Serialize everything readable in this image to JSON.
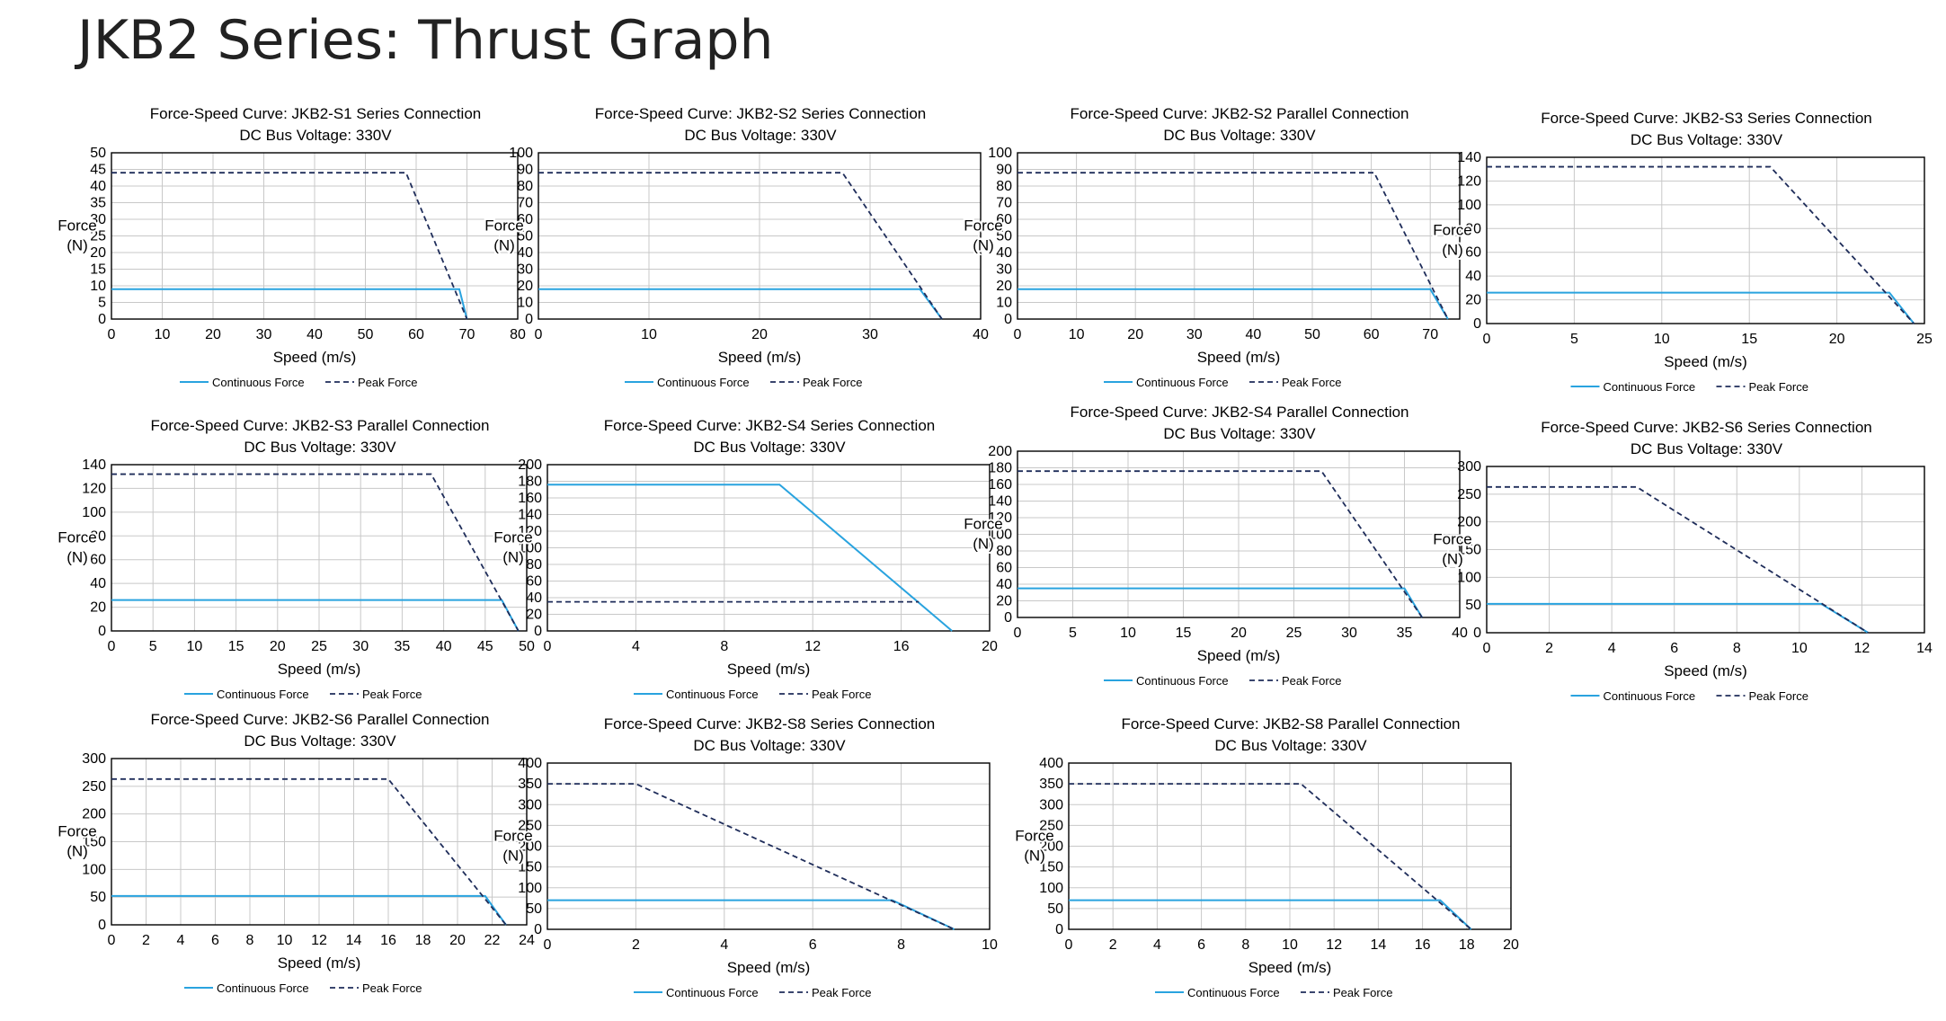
{
  "page": {
    "title": "JKB2 Series: Thrust Graph"
  },
  "colors": {
    "continuous": "#29a3df",
    "peak": "#1f2d5a",
    "grid": "#c8c8c8",
    "axis": "#000000"
  },
  "chart_data": [
    {
      "type": "line",
      "title": "Force-Speed Curve: JKB2-S1 Series Connection",
      "subtitle": "DC Bus Voltage: 330V",
      "xlabel": "Speed (m/s)",
      "ylabel": "Force\n(N)",
      "xlim": [
        0,
        80
      ],
      "ylim": [
        0,
        50
      ],
      "xticks": [
        0,
        10,
        20,
        30,
        40,
        50,
        60,
        70,
        80
      ],
      "yticks": [
        0,
        5,
        10,
        15,
        20,
        25,
        30,
        35,
        40,
        45,
        50
      ],
      "series": [
        {
          "name": "Continuous Force",
          "x": [
            0,
            68.5,
            70
          ],
          "y": [
            9,
            9,
            0
          ]
        },
        {
          "name": "Peak Force",
          "x": [
            0,
            58,
            70
          ],
          "y": [
            44,
            44,
            0
          ]
        }
      ]
    },
    {
      "type": "line",
      "title": "Force-Speed Curve: JKB2-S2 Series Connection",
      "subtitle": "DC Bus Voltage: 330V",
      "xlabel": "Speed (m/s)",
      "ylabel": "Force\n(N)",
      "xlim": [
        0,
        40
      ],
      "ylim": [
        0,
        100
      ],
      "xticks": [
        0,
        10,
        20,
        30,
        40
      ],
      "yticks": [
        0,
        10,
        20,
        30,
        40,
        50,
        60,
        70,
        80,
        90,
        100
      ],
      "series": [
        {
          "name": "Continuous Force",
          "x": [
            0,
            34.5,
            36.5
          ],
          "y": [
            18,
            18,
            0
          ]
        },
        {
          "name": "Peak Force",
          "x": [
            0,
            27.5,
            36.5
          ],
          "y": [
            88,
            88,
            0
          ]
        }
      ]
    },
    {
      "type": "line",
      "title": "Force-Speed Curve: JKB2-S2 Parallel Connection",
      "subtitle": "DC Bus Voltage: 330V",
      "xlabel": "Speed (m/s)",
      "ylabel": "Force\n(N)",
      "xlim": [
        0,
        75
      ],
      "ylim": [
        0,
        100
      ],
      "xticks": [
        0,
        10,
        20,
        30,
        40,
        50,
        60,
        70
      ],
      "yticks": [
        0,
        10,
        20,
        30,
        40,
        50,
        60,
        70,
        80,
        90,
        100
      ],
      "series": [
        {
          "name": "Continuous Force",
          "x": [
            0,
            70,
            73
          ],
          "y": [
            18,
            18,
            0
          ]
        },
        {
          "name": "Peak Force",
          "x": [
            0,
            60.5,
            73
          ],
          "y": [
            88,
            88,
            0
          ]
        }
      ]
    },
    {
      "type": "line",
      "title": "Force-Speed Curve: JKB2-S3 Series Connection",
      "subtitle": "DC Bus Voltage: 330V",
      "xlabel": "Speed (m/s)",
      "ylabel": "Force\n(N)",
      "xlim": [
        0,
        25
      ],
      "ylim": [
        0,
        140
      ],
      "xticks": [
        0,
        5,
        10,
        15,
        20,
        25
      ],
      "yticks": [
        0,
        20,
        40,
        60,
        80,
        100,
        120,
        140
      ],
      "series": [
        {
          "name": "Continuous Force",
          "x": [
            0,
            23,
            24.4
          ],
          "y": [
            26,
            26,
            0
          ]
        },
        {
          "name": "Peak Force",
          "x": [
            0,
            16.2,
            24.4
          ],
          "y": [
            132,
            132,
            0
          ]
        }
      ]
    },
    {
      "type": "line",
      "title": "Force-Speed Curve: JKB2-S3 Parallel Connection",
      "subtitle": "DC Bus Voltage: 330V",
      "xlabel": "Speed (m/s)",
      "ylabel": "Force\n(N)",
      "xlim": [
        0,
        50
      ],
      "ylim": [
        0,
        140
      ],
      "xticks": [
        0,
        5,
        10,
        15,
        20,
        25,
        30,
        35,
        40,
        45,
        50
      ],
      "yticks": [
        0,
        20,
        40,
        60,
        80,
        100,
        120,
        140
      ],
      "series": [
        {
          "name": "Continuous Force",
          "x": [
            0,
            47,
            49
          ],
          "y": [
            26,
            26,
            0
          ]
        },
        {
          "name": "Peak Force",
          "x": [
            0,
            38.5,
            49
          ],
          "y": [
            132,
            132,
            0
          ]
        }
      ]
    },
    {
      "type": "line",
      "title": "Force-Speed Curve: JKB2-S4 Series Connection",
      "subtitle": "DC Bus Voltage: 330V",
      "xlabel": "Speed (m/s)",
      "ylabel": "Force\n(N)",
      "xlim": [
        0,
        20
      ],
      "ylim": [
        0,
        200
      ],
      "xticks": [
        0,
        4,
        8,
        12,
        16,
        20
      ],
      "yticks": [
        0,
        20,
        40,
        60,
        80,
        100,
        120,
        140,
        160,
        180,
        200
      ],
      "series": [
        {
          "name": "Continuous Force",
          "x": [
            0,
            10.5,
            18.3
          ],
          "y": [
            176,
            176,
            0
          ]
        },
        {
          "name": "Peak Force",
          "x": [
            0,
            16.8
          ],
          "y": [
            35,
            35
          ]
        }
      ]
    },
    {
      "type": "line",
      "title": "Force-Speed Curve: JKB2-S4 Parallel Connection",
      "subtitle": "DC Bus Voltage: 330V",
      "xlabel": "Speed (m/s)",
      "ylabel": "Force\n(N)",
      "xlim": [
        0,
        40
      ],
      "ylim": [
        0,
        200
      ],
      "xticks": [
        0,
        5,
        10,
        15,
        20,
        25,
        30,
        35,
        40
      ],
      "yticks": [
        0,
        20,
        40,
        60,
        80,
        100,
        120,
        140,
        160,
        180,
        200
      ],
      "series": [
        {
          "name": "Continuous Force",
          "x": [
            0,
            35,
            36.6
          ],
          "y": [
            35,
            35,
            0
          ]
        },
        {
          "name": "Peak Force",
          "x": [
            0,
            27.5,
            36.6
          ],
          "y": [
            176,
            176,
            0
          ]
        }
      ]
    },
    {
      "type": "line",
      "title": "Force-Speed Curve: JKB2-S6 Series Connection",
      "subtitle": "DC Bus Voltage: 330V",
      "xlabel": "Speed (m/s)",
      "ylabel": "Force\n(N)",
      "xlim": [
        0,
        14
      ],
      "ylim": [
        0,
        300
      ],
      "xticks": [
        0,
        2,
        4,
        6,
        8,
        10,
        12,
        14
      ],
      "yticks": [
        0,
        50,
        100,
        150,
        200,
        250,
        300
      ],
      "series": [
        {
          "name": "Continuous Force",
          "x": [
            0,
            10.7,
            12.2
          ],
          "y": [
            52,
            52,
            0
          ]
        },
        {
          "name": "Peak Force",
          "x": [
            0,
            4.8,
            12.2
          ],
          "y": [
            263,
            263,
            0
          ]
        }
      ]
    },
    {
      "type": "line",
      "title": "Force-Speed Curve: JKB2-S6 Parallel Connection",
      "subtitle": "DC Bus Voltage: 330V",
      "xlabel": "Speed (m/s)",
      "ylabel": "Force\n(N)",
      "xlim": [
        0,
        24
      ],
      "ylim": [
        0,
        300
      ],
      "xticks": [
        0,
        2,
        4,
        6,
        8,
        10,
        12,
        14,
        16,
        18,
        20,
        22,
        24
      ],
      "yticks": [
        0,
        50,
        100,
        150,
        200,
        250,
        300
      ],
      "series": [
        {
          "name": "Continuous Force",
          "x": [
            0,
            21.6,
            22.8
          ],
          "y": [
            52,
            52,
            0
          ]
        },
        {
          "name": "Peak Force",
          "x": [
            0,
            16,
            22.8
          ],
          "y": [
            263,
            263,
            0
          ]
        }
      ]
    },
    {
      "type": "line",
      "title": "Force-Speed Curve: JKB2-S8 Series Connection",
      "subtitle": "DC Bus Voltage: 330V",
      "xlabel": "Speed (m/s)",
      "ylabel": "Force\n(N)",
      "xlim": [
        0,
        10
      ],
      "ylim": [
        0,
        400
      ],
      "xticks": [
        0,
        2,
        4,
        6,
        8,
        10
      ],
      "yticks": [
        0,
        50,
        100,
        150,
        200,
        250,
        300,
        350,
        400
      ],
      "series": [
        {
          "name": "Continuous Force",
          "x": [
            0,
            7.8,
            9.2
          ],
          "y": [
            70,
            70,
            0
          ]
        },
        {
          "name": "Peak Force",
          "x": [
            0,
            2,
            9.2
          ],
          "y": [
            350,
            350,
            0
          ]
        }
      ]
    },
    {
      "type": "line",
      "title": "Force-Speed Curve: JKB2-S8 Parallel Connection",
      "subtitle": "DC Bus Voltage: 330V",
      "xlabel": "Speed (m/s)",
      "ylabel": "Force\n(N)",
      "xlim": [
        0,
        20
      ],
      "ylim": [
        0,
        400
      ],
      "xticks": [
        0,
        2,
        4,
        6,
        8,
        10,
        12,
        14,
        16,
        18,
        20
      ],
      "yticks": [
        0,
        50,
        100,
        150,
        200,
        250,
        300,
        350,
        400
      ],
      "series": [
        {
          "name": "Continuous Force",
          "x": [
            0,
            16.8,
            18.2
          ],
          "y": [
            70,
            70,
            0
          ]
        },
        {
          "name": "Peak Force",
          "x": [
            0,
            10.5,
            18.2
          ],
          "y": [
            350,
            350,
            0
          ]
        }
      ]
    }
  ]
}
